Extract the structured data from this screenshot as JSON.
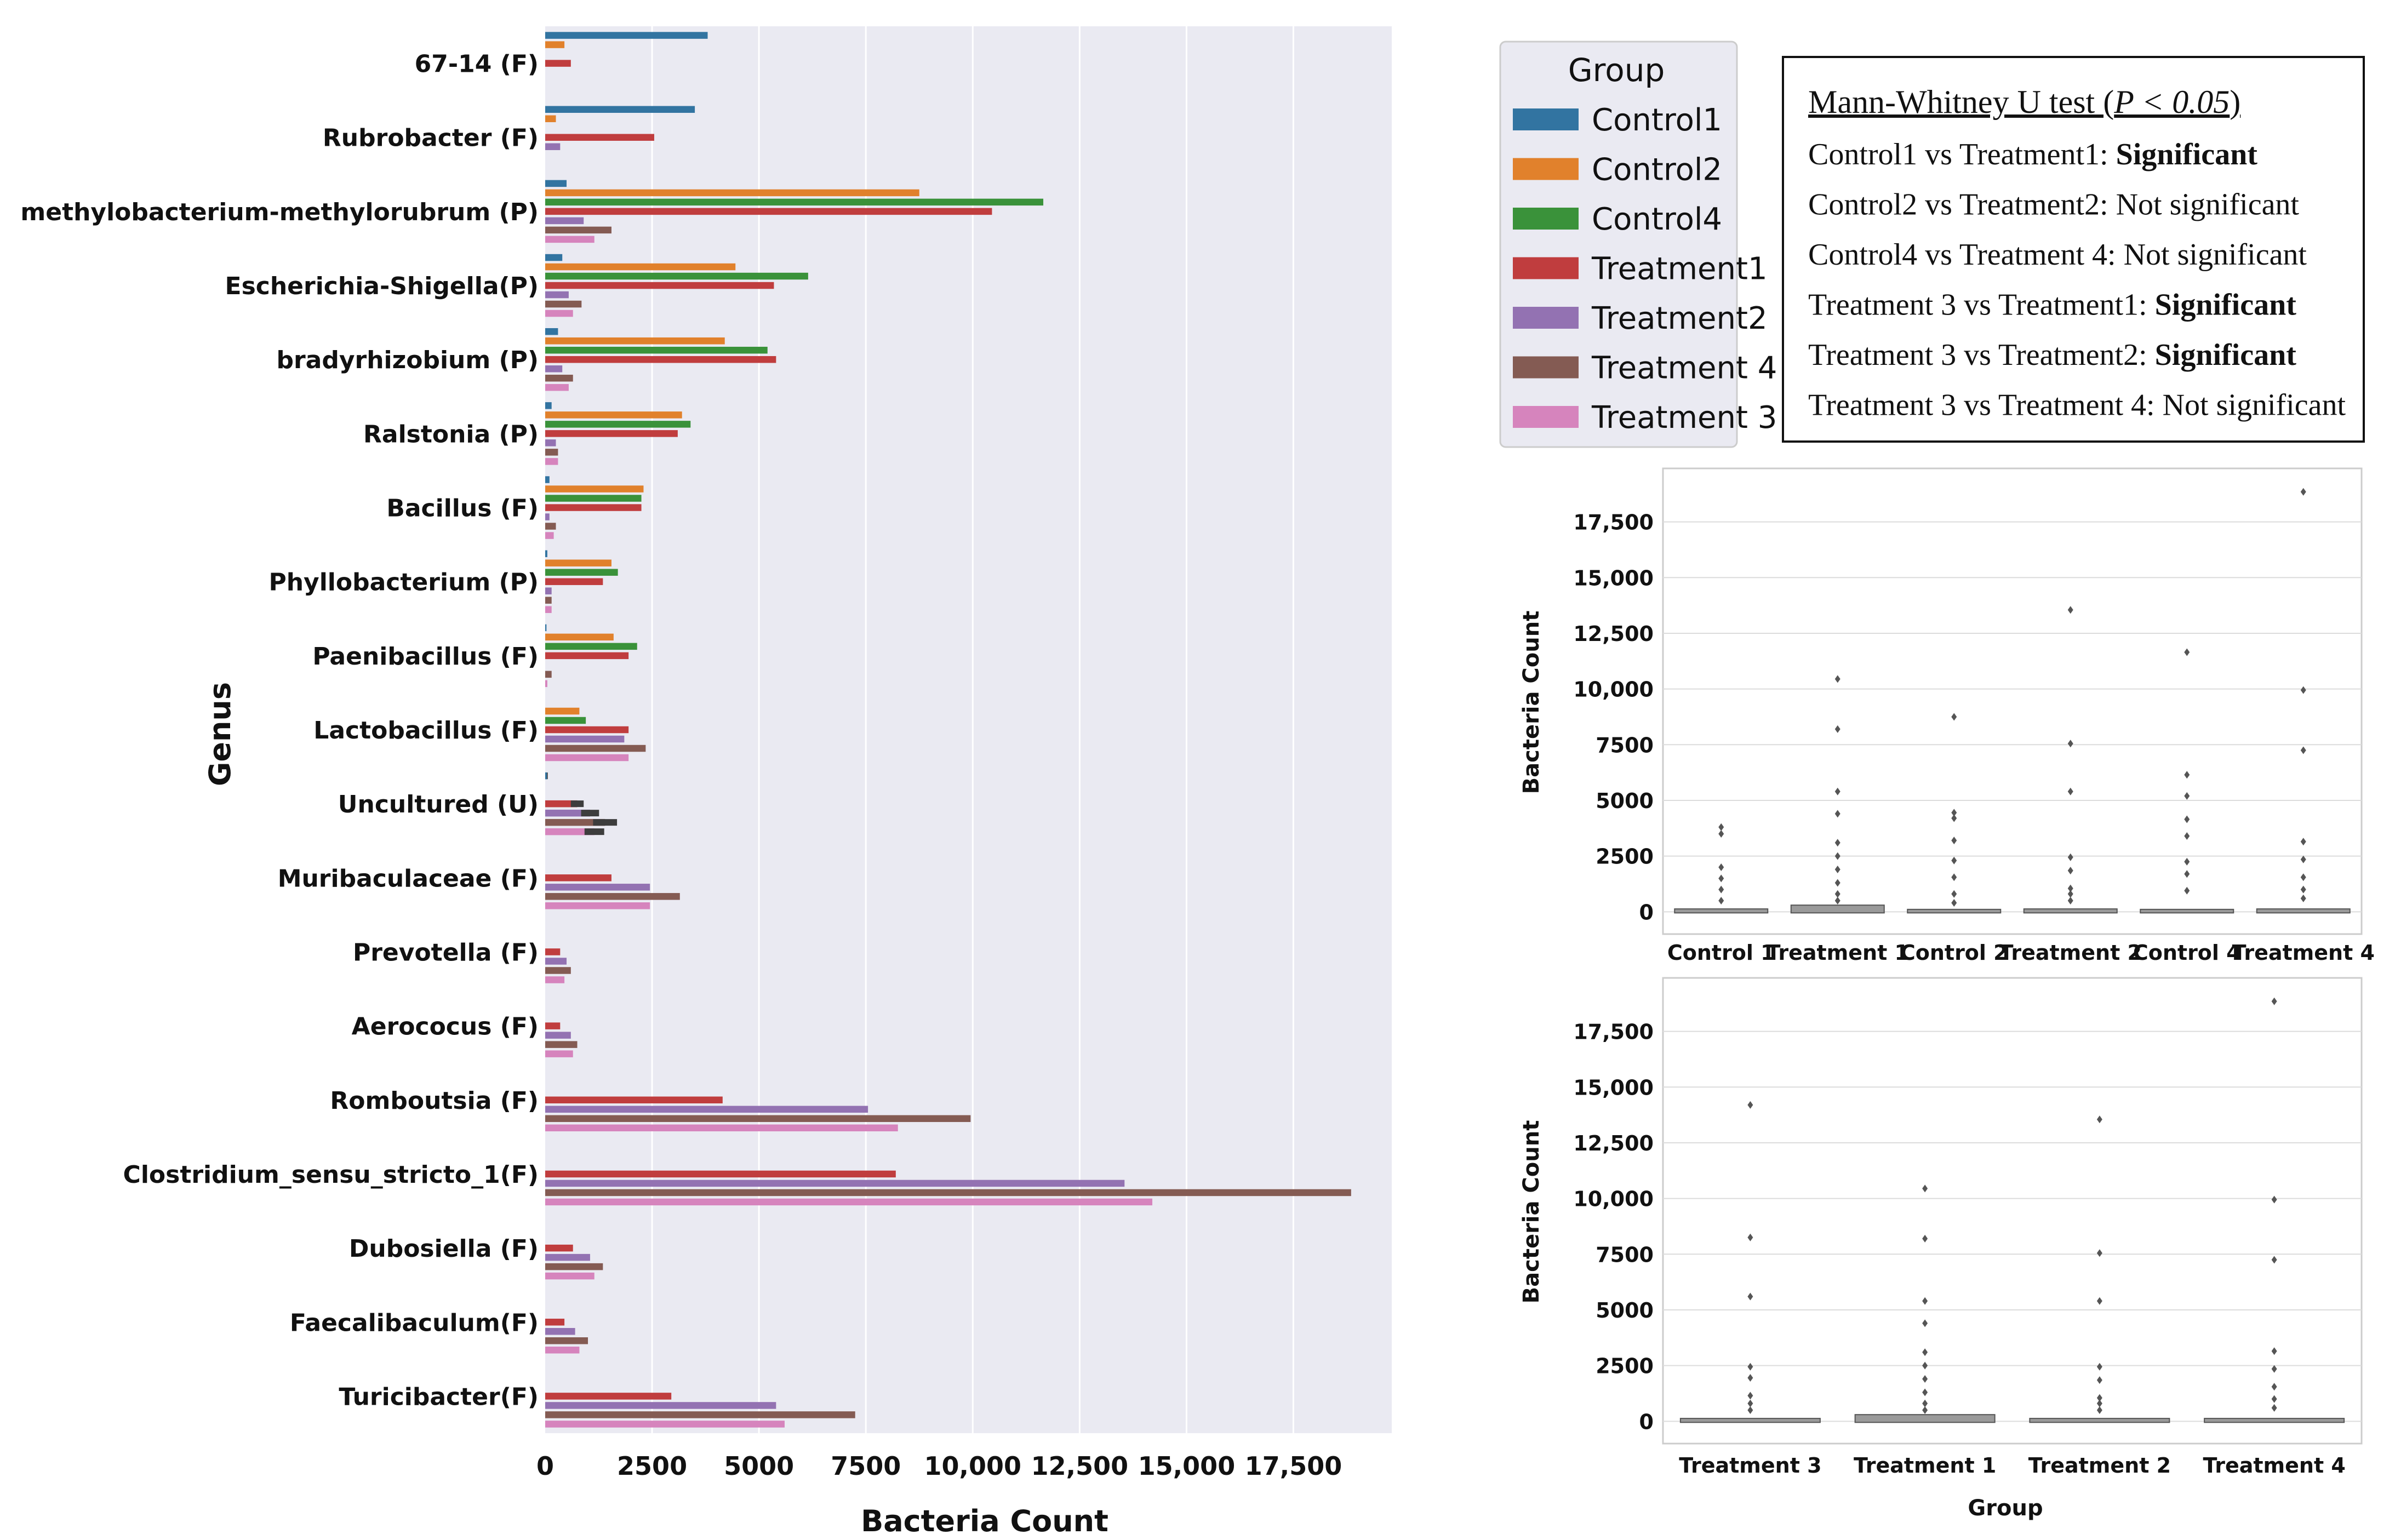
{
  "colors": {
    "Control1": "#3274a1",
    "Control2": "#e1812c",
    "Control4": "#3a923a",
    "Treatment1": "#c03d3e",
    "Treatment2": "#9372b2",
    "Treatment 4": "#845b53",
    "Treatment 3": "#d684bd",
    "panel_bg": "#eaeaf2",
    "unknown": "#3d3d3d"
  },
  "chart_data": [
    {
      "type": "bar",
      "orientation": "horizontal",
      "title": "",
      "xlabel": "Bacteria Count",
      "ylabel": "Genus",
      "xlim": [
        0,
        19800
      ],
      "xticks": [
        0,
        2500,
        5000,
        7500,
        10000,
        12500,
        15000,
        17500
      ],
      "xtick_labels": [
        "0",
        "2500",
        "5000",
        "7500",
        "10,000",
        "12,500",
        "15,000",
        "17,500"
      ],
      "categories": [
        "67-14 (F)",
        "Rubrobacter (F)",
        "methylobacterium-methylorubrum (P)",
        "Escherichia-Shigella(P)",
        "bradyrhizobium (P)",
        "Ralstonia (P)",
        "Bacillus (F)",
        "Phyllobacterium (P)",
        "Paenibacillus (F)",
        "Lactobacillus (F)",
        "Uncultured (U)",
        "Muribaculaceae (F)",
        "Prevotella (F)",
        "Aerococus (F)",
        "Romboutsia (F)",
        "Clostridium_sensu_stricto_1(F)",
        "Dubosiella (F)",
        "Faecalibaculum(F)",
        "Turicibacter(F)"
      ],
      "legend_title": "Group",
      "legend_position": "top-right",
      "series": [
        {
          "name": "Control1",
          "values": [
            3800,
            3500,
            500,
            400,
            300,
            150,
            100,
            50,
            30,
            0,
            50,
            0,
            0,
            0,
            0,
            0,
            0,
            0,
            0
          ]
        },
        {
          "name": "Control2",
          "values": [
            450,
            250,
            8750,
            4450,
            4200,
            3200,
            2300,
            1550,
            1600,
            800,
            0,
            0,
            0,
            0,
            0,
            0,
            0,
            0,
            0
          ]
        },
        {
          "name": "Control4",
          "values": [
            0,
            0,
            11650,
            6150,
            5200,
            3400,
            2250,
            1700,
            2150,
            950,
            0,
            0,
            0,
            0,
            0,
            0,
            0,
            0,
            0
          ]
        },
        {
          "name": "Treatment1",
          "values": [
            600,
            2550,
            10450,
            5350,
            5400,
            3100,
            2250,
            1350,
            1950,
            1950,
            750,
            1550,
            350,
            350,
            4150,
            8200,
            650,
            450,
            2950
          ]
        },
        {
          "name": "Treatment2",
          "values": [
            0,
            350,
            900,
            550,
            400,
            250,
            100,
            150,
            0,
            1850,
            1050,
            2450,
            500,
            600,
            7550,
            13550,
            1050,
            700,
            5400
          ]
        },
        {
          "name": "Treatment 4",
          "values": [
            0,
            0,
            1550,
            850,
            650,
            300,
            250,
            150,
            150,
            2350,
            1400,
            3150,
            600,
            750,
            9950,
            18850,
            1350,
            1000,
            7250
          ]
        },
        {
          "name": "Treatment 3",
          "values": [
            0,
            0,
            1150,
            650,
            550,
            300,
            200,
            150,
            50,
            1950,
            1150,
            2450,
            450,
            650,
            8250,
            14200,
            1150,
            800,
            5600
          ]
        }
      ],
      "error_bars_category": "Uncultured (U)"
    },
    {
      "type": "box",
      "title": "",
      "xlabel": "",
      "ylabel": "Bacteria Count",
      "ylim": [
        -1000,
        19900
      ],
      "yticks": [
        0,
        2500,
        5000,
        7500,
        10000,
        12500,
        15000,
        17500
      ],
      "ytick_labels": [
        "0",
        "2500",
        "5000",
        "7500",
        "10,000",
        "12,500",
        "15,000",
        "17,500"
      ],
      "categories": [
        "Control 1",
        "Treatment 1",
        "Control 2",
        "Treatment 2",
        "Control 4",
        "Treatment 4"
      ],
      "box_ranges": [
        [
          0,
          80
        ],
        [
          0,
          250
        ],
        [
          0,
          60
        ],
        [
          0,
          80
        ],
        [
          0,
          60
        ],
        [
          0,
          80
        ]
      ],
      "outliers": [
        [
          3800,
          3500,
          2000,
          1500,
          1000,
          500
        ],
        [
          10450,
          8200,
          5400,
          4400,
          3100,
          2500,
          1900,
          1300,
          800,
          500
        ],
        [
          8750,
          4450,
          4200,
          3200,
          2300,
          1550,
          800,
          400
        ],
        [
          13550,
          7550,
          5400,
          2450,
          1850,
          1050,
          800,
          500
        ],
        [
          11650,
          6150,
          5200,
          4150,
          3400,
          2250,
          1700,
          950
        ],
        [
          18850,
          9950,
          7250,
          3150,
          2350,
          1550,
          1000,
          600
        ]
      ]
    },
    {
      "type": "box",
      "title": "",
      "xlabel": "Group",
      "ylabel": "Bacteria Count",
      "ylim": [
        -1000,
        19900
      ],
      "yticks": [
        0,
        2500,
        5000,
        7500,
        10000,
        12500,
        15000,
        17500
      ],
      "ytick_labels": [
        "0",
        "2500",
        "5000",
        "7500",
        "10,000",
        "12,500",
        "15,000",
        "17,500"
      ],
      "categories": [
        "Treatment 3",
        "Treatment 1",
        "Treatment 2",
        "Treatment 4"
      ],
      "box_ranges": [
        [
          0,
          80
        ],
        [
          0,
          250
        ],
        [
          0,
          80
        ],
        [
          0,
          80
        ]
      ],
      "outliers": [
        [
          14200,
          8250,
          5600,
          2450,
          1950,
          1150,
          800,
          500
        ],
        [
          10450,
          8200,
          5400,
          4400,
          3100,
          2500,
          1900,
          1300,
          800,
          500
        ],
        [
          13550,
          7550,
          5400,
          2450,
          1850,
          1050,
          800,
          500
        ],
        [
          18850,
          9950,
          7250,
          3150,
          2350,
          1550,
          1000,
          600
        ]
      ]
    }
  ],
  "stats_box": {
    "title_prefix": "Mann-Whitney U test (",
    "title_italic": "P < 0.05",
    "title_suffix": ")",
    "lines": [
      {
        "text": "Control1 vs Treatment1: ",
        "result": "Significant",
        "bold": true
      },
      {
        "text": "Control2 vs Treatment2: ",
        "result": "Not significant",
        "bold": false
      },
      {
        "text": "Control4 vs Treatment 4: ",
        "result": "Not significant",
        "bold": false
      },
      {
        "text": "Treatment 3 vs Treatment1: ",
        "result": "Significant",
        "bold": true
      },
      {
        "text": "Treatment 3 vs Treatment2: ",
        "result": "Significant",
        "bold": true
      },
      {
        "text": "Treatment 3 vs Treatment 4: ",
        "result": "Not significant",
        "bold": false
      }
    ]
  }
}
